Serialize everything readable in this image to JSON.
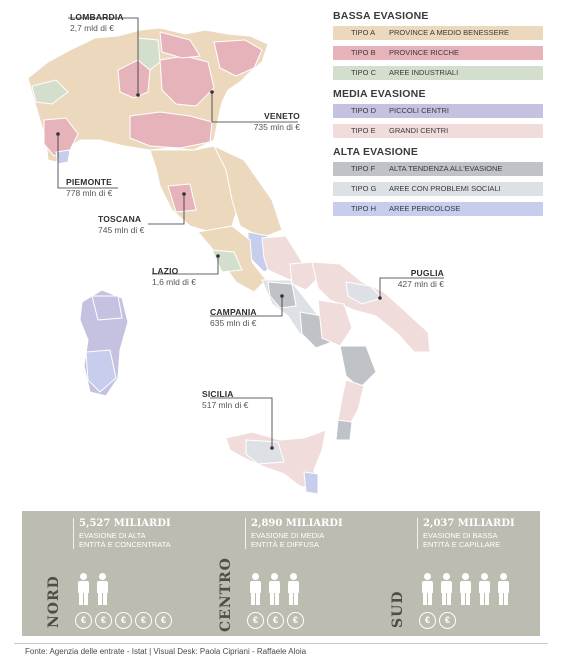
{
  "legend": {
    "groups": [
      {
        "title": "BASSA EVASIONE",
        "items": [
          {
            "code": "TIPO A",
            "label": "PROVINCE A MEDIO BENESSERE",
            "color": "#ecd8bd"
          },
          {
            "code": "TIPO B",
            "label": "PROVINCE RICCHE",
            "color": "#e6b3bb"
          },
          {
            "code": "TIPO C",
            "label": "AREE INDUSTRIALI",
            "color": "#d3dfcc"
          }
        ]
      },
      {
        "title": "MEDIA EVASIONE",
        "items": [
          {
            "code": "TIPO D",
            "label": "PICCOLI CENTRI",
            "color": "#c4c2e0"
          },
          {
            "code": "TIPO E",
            "label": "GRANDI CENTRI",
            "color": "#f1dcdc"
          }
        ]
      },
      {
        "title": "ALTA EVASIONE",
        "items": [
          {
            "code": "TIPO F",
            "label": "ALTA TENDENZA ALL'EVASIONE",
            "color": "#bfc3c7"
          },
          {
            "code": "TIPO G",
            "label": "AREE CON PROBLEMI SOCIALI",
            "color": "#dde0e4"
          },
          {
            "code": "TIPO H",
            "label": "AREE PERICOLOSE",
            "color": "#c7cdec"
          }
        ]
      }
    ]
  },
  "callouts": {
    "lombardia": {
      "name": "LOMBARDIA",
      "value": "2,7 mld di €"
    },
    "veneto": {
      "name": "VENETO",
      "value": "735 mln di €"
    },
    "piemonte": {
      "name": "PIEMONTE",
      "value": "778 mln di €"
    },
    "toscana": {
      "name": "TOSCANA",
      "value": "745 mln di €"
    },
    "lazio": {
      "name": "LAZIO",
      "value": "1,6 mld di €"
    },
    "puglia": {
      "name": "PUGLIA",
      "value": "427 mln di €"
    },
    "campania": {
      "name": "CAMPANIA",
      "value": "635 mln di €"
    },
    "sicilia": {
      "name": "SICILIA",
      "value": "517 mln di €"
    }
  },
  "summary": {
    "nord": {
      "title": "NORD",
      "amount": "5,527 MILIARDI",
      "desc1": "EVASIONE DI ALTA",
      "desc2": "ENTITÀ E CONCENTRATA",
      "people": 2,
      "coins": 5
    },
    "centro": {
      "title": "CENTRO",
      "amount": "2,890 MILIARDI",
      "desc1": "EVASIONE DI MEDIA",
      "desc2": "ENTITÀ E DIFFUSA",
      "people": 3,
      "coins": 3
    },
    "sud": {
      "title": "SUD",
      "amount": "2,037 MILIARDI",
      "desc1": "EVASIONE DI BASSA",
      "desc2": "ENTITÀ E CAPILLARE",
      "people": 5,
      "coins": 2
    }
  },
  "footer": "Fonte: Agenzia delle entrate - Istat | Visual Desk: Paola Cipriani - Raffaele Aloia",
  "colors": {
    "panel": "#bdbcb0",
    "outline": "#ffffff",
    "callout_line": "#333333"
  }
}
